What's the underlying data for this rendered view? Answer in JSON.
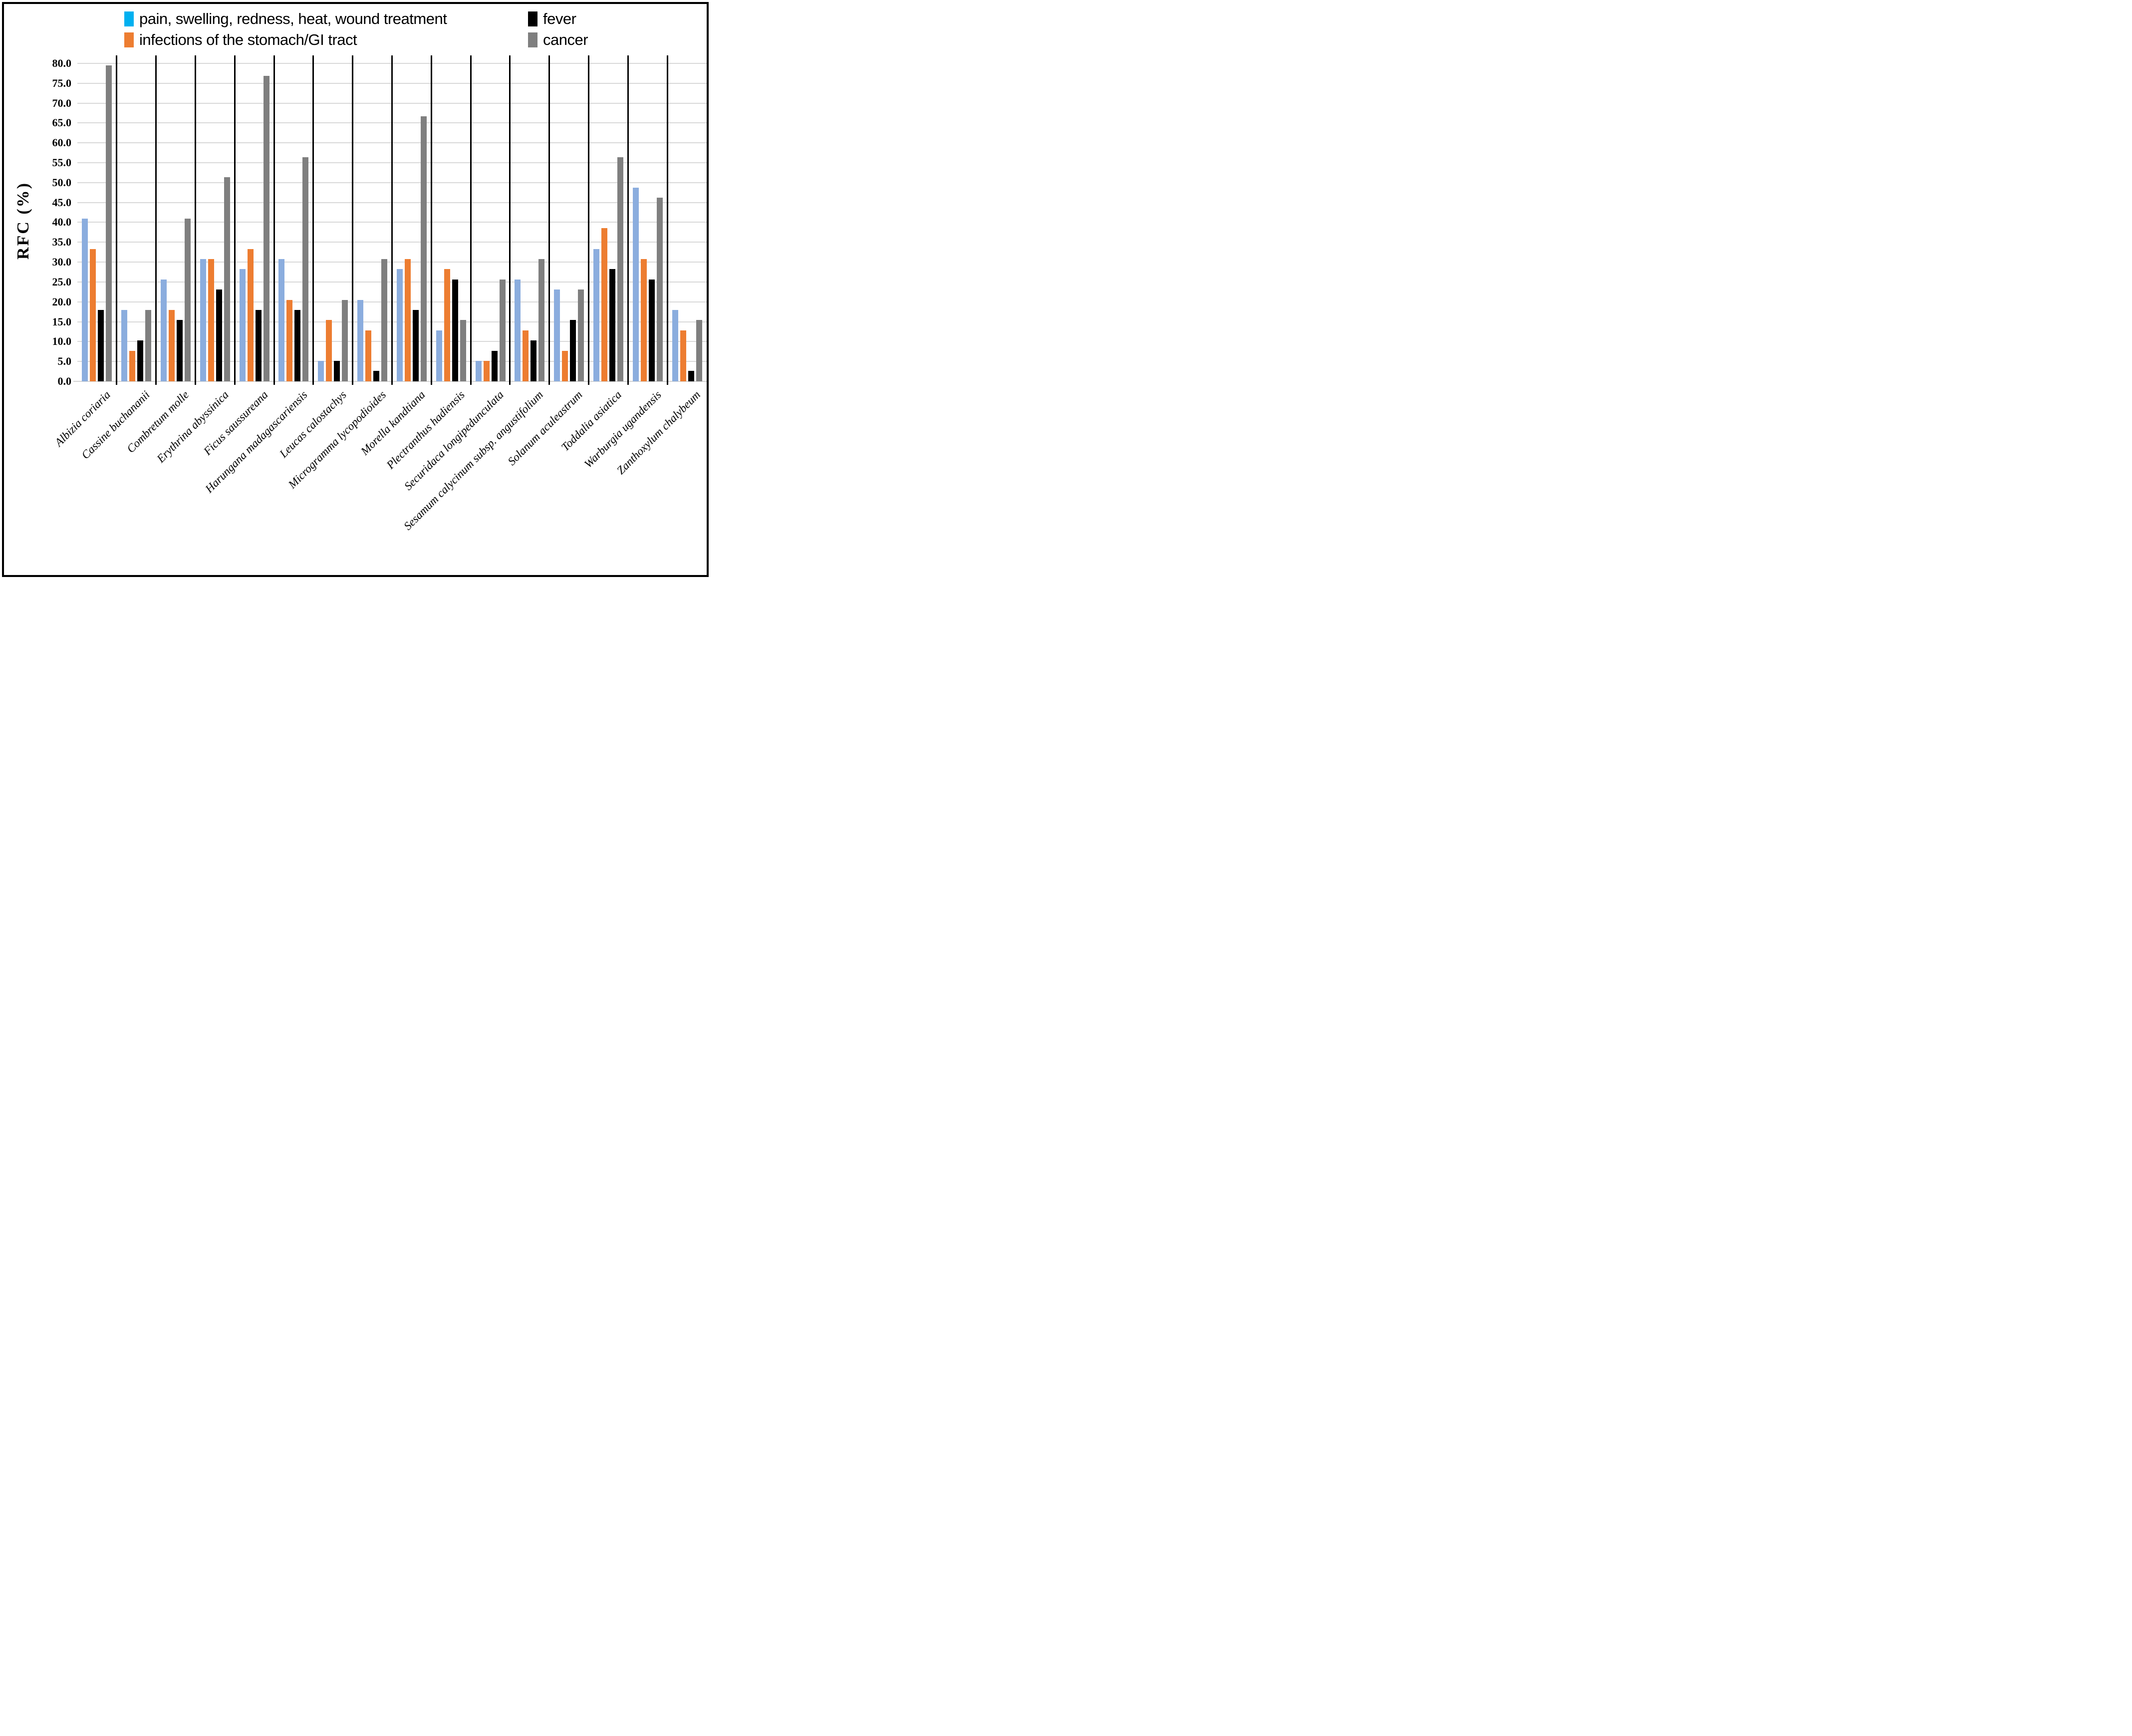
{
  "legend": {
    "items": [
      {
        "label": "pain, swelling, redness, heat, wound treatment",
        "swatch_color": "#00B0F0",
        "column": "left",
        "row": 0
      },
      {
        "label": "infections of the stomach/GI tract",
        "swatch_color": "#ED7D31",
        "column": "left",
        "row": 1
      },
      {
        "label": "fever",
        "swatch_color": "#000000",
        "column": "right",
        "row": 0
      },
      {
        "label": "cancer",
        "swatch_color": "#7F7F7F",
        "column": "right",
        "row": 1
      }
    ]
  },
  "y_axis": {
    "title": "RFC (%)",
    "tick_labels": [
      "80.0",
      "75.0",
      "70.0",
      "65.0",
      "60.0",
      "55.0",
      "50.0",
      "45.0",
      "40.0",
      "35.0",
      "30.0",
      "25.0",
      "20.0",
      "15.0",
      "10.0",
      "5.0",
      "0.0"
    ],
    "min": 0,
    "max": 80,
    "step": 5
  },
  "chart_data": {
    "type": "bar",
    "title": "",
    "xlabel": "",
    "ylabel": "RFC (%)",
    "ylim": [
      0,
      80
    ],
    "grid": true,
    "legend_position": "top",
    "categories": [
      "Albizia coriaria",
      "Cassine buchananii",
      "Combretum molle",
      "Erythrina abyssinica",
      "Ficus saussureana",
      "Harungana madagascariensis",
      "Leucas calostachys",
      "Microgramma lycopodioides",
      "Morella kandtiana",
      "Plectranthus hadiensis",
      "Securidaca longipedunculata",
      "Sesamum calycinum subsp. angustifolium",
      "Solanum aculeastrum",
      "Toddalia asiatica",
      "Warburgia ugandensis",
      "Zanthoxylum chalybeum"
    ],
    "series": [
      {
        "name": "pain, swelling, redness, heat, wound treatment",
        "bar_color": "#8BADDE",
        "legend_color": "#00B0F0",
        "values": [
          41.0,
          18.0,
          25.6,
          30.8,
          28.2,
          30.8,
          5.1,
          20.5,
          28.2,
          12.8,
          5.1,
          25.6,
          23.1,
          33.3,
          48.7,
          18.0
        ]
      },
      {
        "name": "infections of the stomach/GI tract",
        "bar_color": "#ED7D31",
        "legend_color": "#ED7D31",
        "values": [
          33.3,
          7.7,
          18.0,
          30.8,
          33.3,
          20.5,
          15.4,
          12.8,
          30.8,
          28.2,
          5.1,
          12.8,
          7.7,
          38.5,
          30.8,
          12.8
        ]
      },
      {
        "name": "fever",
        "bar_color": "#000000",
        "legend_color": "#000000",
        "values": [
          18.0,
          10.3,
          15.4,
          23.1,
          18.0,
          18.0,
          5.1,
          2.6,
          18.0,
          25.6,
          7.7,
          10.3,
          15.4,
          28.2,
          25.6,
          2.6
        ]
      },
      {
        "name": "cancer",
        "bar_color": "#7F7F7F",
        "legend_color": "#7F7F7F",
        "values": [
          79.5,
          18.0,
          41.0,
          51.3,
          76.9,
          56.4,
          20.5,
          30.8,
          66.7,
          15.4,
          25.6,
          30.8,
          23.1,
          56.4,
          46.2,
          15.4
        ]
      }
    ]
  },
  "colors": {
    "background": "#FFFFFF",
    "frame": "#000000",
    "gridline": "#D9D9D9",
    "baseline": "#D3D3D3",
    "separator": "#000000"
  }
}
